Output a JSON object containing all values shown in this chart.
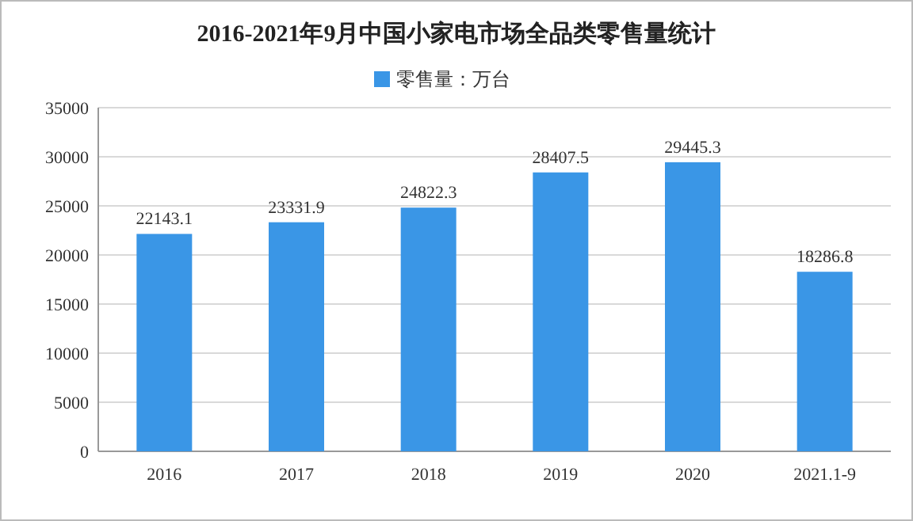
{
  "chart_data": {
    "type": "bar",
    "title": "2016-2021年9月中国小家电市场全品类零售量统计",
    "categories": [
      "2016",
      "2017",
      "2018",
      "2019",
      "2020",
      "2021.1-9"
    ],
    "series": [
      {
        "name": "零售量：万台",
        "color": "#3a96e6",
        "values": [
          22143.1,
          23331.9,
          24822.3,
          28407.5,
          29445.3,
          18286.8
        ]
      }
    ],
    "ylim": [
      0,
      35000
    ],
    "yticks": [
      0,
      5000,
      10000,
      15000,
      20000,
      25000,
      30000,
      35000
    ],
    "grid": "y",
    "legend": "top",
    "data_labels": true
  }
}
